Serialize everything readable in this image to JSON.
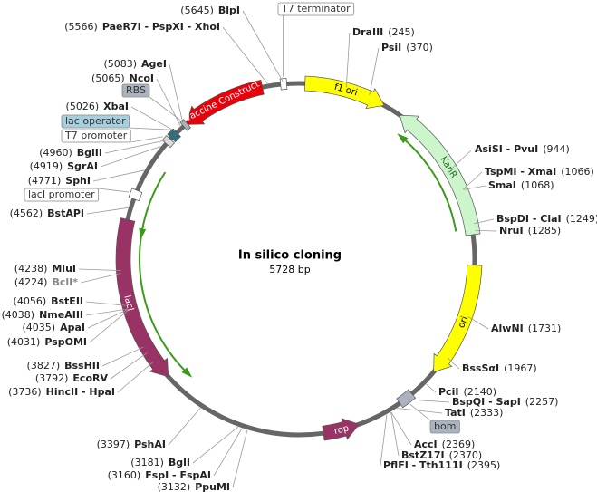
{
  "title": "In silico cloning",
  "length": "5728 bp",
  "features": [
    {
      "label": "Vaccine Construct"
    },
    {
      "label": "f1 ori"
    },
    {
      "label": "KanR"
    },
    {
      "label": "ori"
    },
    {
      "label": "rop"
    },
    {
      "label": "lacI"
    }
  ],
  "boxes": [
    {
      "label": "T7 terminator"
    },
    {
      "label": "RBS"
    },
    {
      "label": "lac operator"
    },
    {
      "label": "T7 promoter"
    },
    {
      "label": "lacI promoter"
    },
    {
      "label": "bom"
    }
  ],
  "sites": [
    {
      "position": "(5645)",
      "name": "BlpI"
    },
    {
      "position": "(5566)",
      "name": "PaeR7I - PspXI - XhoI"
    },
    {
      "position": "(5083)",
      "name": "AgeI"
    },
    {
      "position": "(5065)",
      "name": "NcoI"
    },
    {
      "position": "(5026)",
      "name": "XbaI"
    },
    {
      "position": "(4960)",
      "name": "BglII"
    },
    {
      "position": "(4919)",
      "name": "SgrAI"
    },
    {
      "position": "(4771)",
      "name": "SphI"
    },
    {
      "position": "(4562)",
      "name": "BstAPI"
    },
    {
      "position": "(4238)",
      "name": "MluI"
    },
    {
      "position": "(4224)",
      "name": "BclI*"
    },
    {
      "position": "(4056)",
      "name": "BstEII"
    },
    {
      "position": "(4038)",
      "name": "NmeAIII"
    },
    {
      "position": "(4035)",
      "name": "ApaI"
    },
    {
      "position": "(4031)",
      "name": "PspOMI"
    },
    {
      "position": "(3827)",
      "name": "BssHII"
    },
    {
      "position": "(3792)",
      "name": "EcoRV"
    },
    {
      "position": "(3736)",
      "name": "HincII - HpaI"
    },
    {
      "position": "(3397)",
      "name": "PshAI"
    },
    {
      "position": "(3181)",
      "name": "BglI"
    },
    {
      "position": "(3160)",
      "name": "FspI - FspAI"
    },
    {
      "position": "(3132)",
      "name": "PpuMI"
    },
    {
      "position": "(245)",
      "name": "DraIII"
    },
    {
      "position": "(370)",
      "name": "PsiI"
    },
    {
      "position": "(944)",
      "name": "AsiSI - PvuI"
    },
    {
      "position": "(1066)",
      "name": "TspMI - XmaI"
    },
    {
      "position": "(1068)",
      "name": "SmaI"
    },
    {
      "position": "(1249)",
      "name": "BspDI - ClaI"
    },
    {
      "position": "(1285)",
      "name": "NruI"
    },
    {
      "position": "(1731)",
      "name": "AlwNI"
    },
    {
      "position": "(1967)",
      "name": "BssSαI"
    },
    {
      "position": "(2140)",
      "name": "PciI"
    },
    {
      "position": "(2257)",
      "name": "BspQI - SapI"
    },
    {
      "position": "(2333)",
      "name": "TatI"
    },
    {
      "position": "(2369)",
      "name": "AccI"
    },
    {
      "position": "(2370)",
      "name": "BstZ17I"
    },
    {
      "position": "(2395)",
      "name": "PflFI - Tth111I"
    }
  ]
}
